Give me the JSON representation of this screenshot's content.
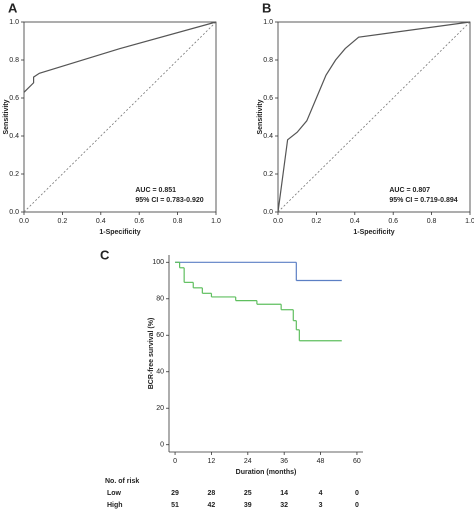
{
  "chart_data": [
    {
      "type": "roc",
      "panel_label": "A",
      "xlabel": "1-Specificity",
      "ylabel": "Sensitivity",
      "x": [
        0,
        0.05,
        0.05,
        0.08,
        0.5,
        1
      ],
      "values": [
        0.63,
        0.68,
        0.71,
        0.73,
        0.86,
        1
      ],
      "color": "#555555",
      "xlim": [
        0,
        1
      ],
      "ylim": [
        0,
        1
      ],
      "xticks": [
        {
          "value": 0,
          "label": "0.0"
        },
        {
          "value": 0.2,
          "label": "0.2"
        },
        {
          "value": 0.4,
          "label": "0.4"
        },
        {
          "value": 0.6,
          "label": "0.6"
        },
        {
          "value": 0.8,
          "label": "0.8"
        },
        {
          "value": 1,
          "label": "1.0"
        }
      ],
      "yticks": [
        {
          "value": 0,
          "label": "0.0"
        },
        {
          "value": 0.2,
          "label": "0.2"
        },
        {
          "value": 0.4,
          "label": "0.4"
        },
        {
          "value": 0.6,
          "label": "0.6"
        },
        {
          "value": 0.8,
          "label": "0.8"
        },
        {
          "value": 1,
          "label": "1.0"
        }
      ],
      "reference_line": true,
      "annotations": [
        "AUC = 0.851",
        "95% CI = 0.783-0.920"
      ]
    },
    {
      "type": "roc",
      "panel_label": "B",
      "xlabel": "1-Specificity",
      "ylabel": "Sensitivity",
      "x": [
        0,
        0.05,
        0.1,
        0.15,
        0.2,
        0.25,
        0.3,
        0.35,
        0.42,
        1
      ],
      "values": [
        0,
        0.38,
        0.42,
        0.48,
        0.6,
        0.72,
        0.8,
        0.86,
        0.92,
        1
      ],
      "color": "#555555",
      "xlim": [
        0,
        1
      ],
      "ylim": [
        0,
        1
      ],
      "xticks": [
        {
          "value": 0,
          "label": "0.0"
        },
        {
          "value": 0.2,
          "label": "0.2"
        },
        {
          "value": 0.4,
          "label": "0.4"
        },
        {
          "value": 0.6,
          "label": "0.6"
        },
        {
          "value": 0.8,
          "label": "0.8"
        },
        {
          "value": 1,
          "label": "1.0"
        }
      ],
      "yticks": [
        {
          "value": 0,
          "label": "0.0"
        },
        {
          "value": 0.2,
          "label": "0.2"
        },
        {
          "value": 0.4,
          "label": "0.4"
        },
        {
          "value": 0.6,
          "label": "0.6"
        },
        {
          "value": 0.8,
          "label": "0.8"
        },
        {
          "value": 1,
          "label": "1.0"
        }
      ],
      "reference_line": true,
      "annotations": [
        "AUC = 0.807",
        "95% CI = 0.719-0.894"
      ]
    },
    {
      "type": "step",
      "panel_label": "C",
      "xlabel": "Duration (months)",
      "ylabel": "BCR-free survival (%)",
      "series": [
        {
          "color": "#5b7fc4",
          "x": [
            0,
            40,
            55
          ],
          "values": [
            100,
            90,
            90
          ]
        },
        {
          "color": "#5fbf5f",
          "x": [
            0,
            1.5,
            3,
            6,
            9,
            12,
            20,
            27,
            35,
            39,
            40,
            41,
            55
          ],
          "values": [
            100,
            97,
            89,
            86,
            83,
            81,
            79,
            77,
            74,
            68,
            63,
            57,
            57
          ]
        }
      ],
      "xlim": [
        -2,
        62
      ],
      "ylim": [
        -4,
        104
      ],
      "xticks": [
        0,
        12,
        24,
        36,
        48,
        60
      ],
      "yticks": [
        0,
        20,
        40,
        60,
        80,
        100
      ],
      "risk_table": {
        "title": "No. of risk",
        "rows": [
          {
            "name": "Low",
            "values": [
              29,
              28,
              25,
              14,
              4,
              0
            ]
          },
          {
            "name": "High",
            "values": [
              51,
              42,
              39,
              32,
              3,
              0
            ]
          }
        ]
      }
    }
  ]
}
